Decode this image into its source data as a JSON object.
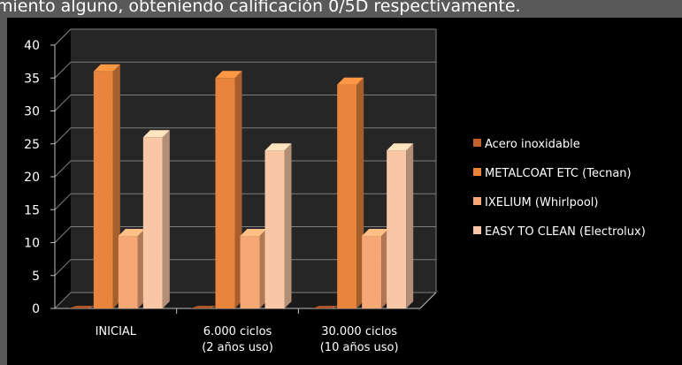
{
  "caption": "miento alguno, obteniendo calificación 0/5D respectivamente.",
  "colors": {
    "page_bg": "#595959",
    "chart_bg": "#000000",
    "grid": "#7f7f7f",
    "wall": "#262626"
  },
  "chart_data": {
    "type": "bar",
    "title": "",
    "xlabel": "",
    "ylabel": "",
    "ylim": [
      0,
      40
    ],
    "yticks": [
      0,
      5,
      10,
      15,
      20,
      25,
      30,
      35,
      40
    ],
    "grid": true,
    "legend_position": "right",
    "categories": [
      [
        "INICIAL"
      ],
      [
        "6.000 ciclos",
        "(2 años uso)"
      ],
      [
        "30.000 ciclos",
        "(10 años uso)"
      ]
    ],
    "series": [
      {
        "name": "Acero inoxidable",
        "color": "#c0622a",
        "values": [
          0,
          0,
          0
        ]
      },
      {
        "name": "METALCOAT ETC (Tecnan)",
        "color": "#e8843c",
        "values": [
          36,
          35,
          34
        ]
      },
      {
        "name": "IXELIUM (Whirlpool)",
        "color": "#f5a774",
        "values": [
          11,
          11,
          11
        ]
      },
      {
        "name": "EASY TO CLEAN (Electrolux)",
        "color": "#f9c7a6",
        "values": [
          26,
          24,
          24
        ]
      }
    ]
  }
}
